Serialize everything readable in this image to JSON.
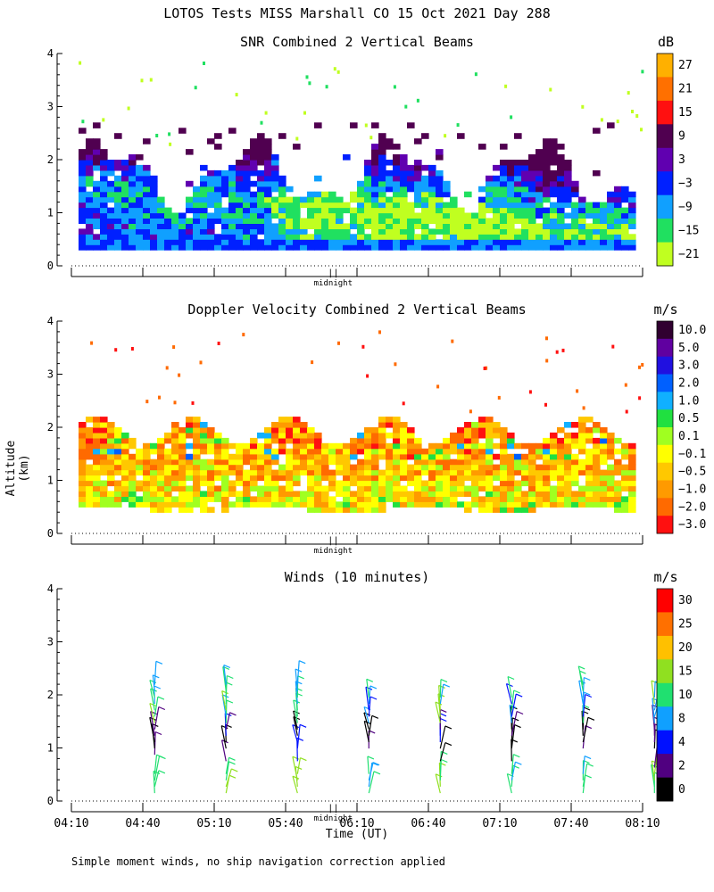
{
  "chart_data": {
    "title": "LOTOS Tests MISS Marshall CO  15 Oct 2021 Day 288",
    "ylabel": "Altitude (km)",
    "xlabel": "Time (UT)",
    "footnote": "Simple moment winds, no ship navigation correction applied",
    "midnight_label": "midnight",
    "midnight_marker": "||",
    "x_ticks": [
      "04:10",
      "04:40",
      "05:10",
      "05:40",
      "06:10",
      "06:40",
      "07:10",
      "07:40",
      "08:10"
    ],
    "y_ticks": [
      "0",
      "1",
      "2",
      "3",
      "4"
    ],
    "ylim": [
      0,
      4
    ],
    "panels": [
      {
        "type": "heatmap",
        "title": "SNR Combined 2 Vertical Beams",
        "unit": "dB",
        "colorbar_labels": [
          "27",
          "21",
          "15",
          "9",
          "3",
          "−3",
          "−9",
          "−15",
          "−21"
        ],
        "colorbar_colors": [
          "#ffb000",
          "#ff7000",
          "#ff1010",
          "#500050",
          "#6000b0",
          "#0020ff",
          "#10a0ff",
          "#20e060",
          "#c0ff20"
        ]
      },
      {
        "type": "heatmap",
        "title": "Doppler Velocity Combined 2 Vertical Beams",
        "unit": "m/s",
        "colorbar_labels": [
          "10.0",
          "5.0",
          "3.0",
          "2.0",
          "1.0",
          "0.5",
          "0.1",
          "−0.1",
          "−0.5",
          "−1.0",
          "−2.0",
          "−3.0"
        ],
        "colorbar_colors": [
          "#300030",
          "#6000a0",
          "#2010e0",
          "#0060ff",
          "#10b0ff",
          "#20e040",
          "#a0ff20",
          "#ffff00",
          "#ffc800",
          "#ff9a00",
          "#ff6a00",
          "#ff1010"
        ]
      },
      {
        "type": "wind-barbs",
        "title": "Winds (10 minutes)",
        "unit": "m/s",
        "colorbar_labels": [
          "30",
          "25",
          "20",
          "15",
          "10",
          "8",
          "4",
          "2",
          "0"
        ],
        "colorbar_colors": [
          "#ff0000",
          "#ff7000",
          "#ffc000",
          "#90e020",
          "#20e070",
          "#10a0ff",
          "#0010ff",
          "#500080",
          "#000000"
        ]
      }
    ]
  }
}
